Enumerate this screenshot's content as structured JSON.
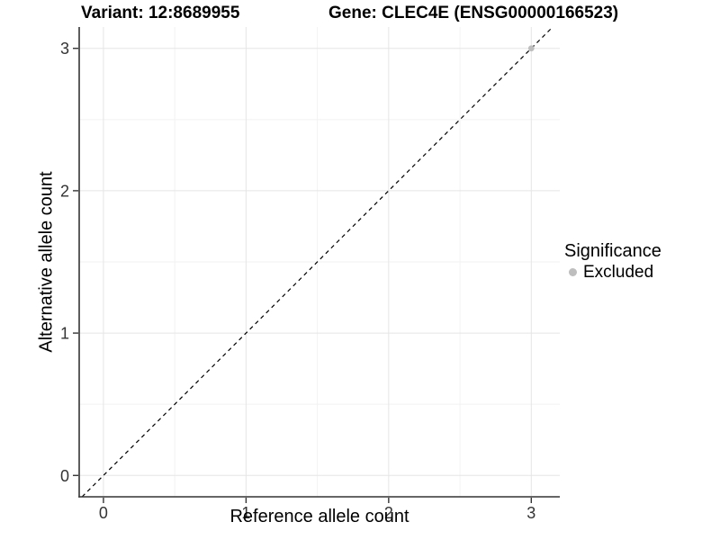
{
  "chart_data": {
    "type": "scatter",
    "title_left": "Variant: 12:8689955",
    "title_right": "Gene: CLEC4E (ENSG00000166523)",
    "xlabel": "Reference allele count",
    "ylabel": "Alternative allele count",
    "xlim": [
      -0.17,
      3.2
    ],
    "ylim": [
      -0.15,
      3.15
    ],
    "x_ticks": [
      0,
      1,
      2,
      3
    ],
    "y_ticks": [
      0,
      1,
      2,
      3
    ],
    "x_minor_ticks": [
      0.5,
      1.5,
      2.5
    ],
    "y_minor_ticks": [
      0.5,
      1.5,
      2.5
    ],
    "grid": "major+minor",
    "legend_position": "right",
    "legend_title": "Significance",
    "series": [
      {
        "name": "Excluded",
        "color": "#bebebe",
        "points": [
          {
            "x": 3,
            "y": 3
          }
        ]
      }
    ],
    "reference_line": {
      "equation": "y = x",
      "style": "dashed",
      "color": "#000000"
    },
    "colors": {
      "grid_major": "#e5e5e5",
      "grid_minor": "#f2f2f2",
      "axis_line": "#333333",
      "tick_text": "#333333",
      "background": "#ffffff"
    }
  }
}
